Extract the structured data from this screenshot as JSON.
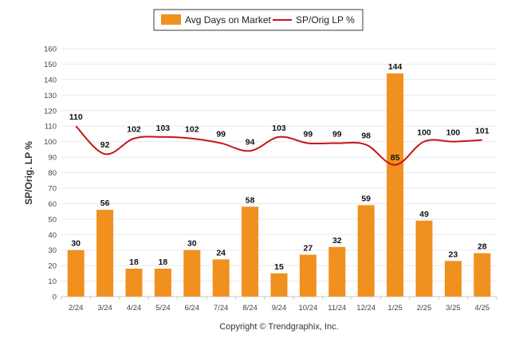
{
  "legend": {
    "bar_label": "Avg Days on Market",
    "line_label": "SP/Orig LP %"
  },
  "copyright": "Copyright © Trendgraphix, Inc.",
  "colors": {
    "bar": "#f0901e",
    "line": "#c81414"
  },
  "chart_data": {
    "type": "bar",
    "categories": [
      "2/24",
      "3/24",
      "4/24",
      "5/24",
      "6/24",
      "7/24",
      "8/24",
      "9/24",
      "10/24",
      "11/24",
      "12/24",
      "1/25",
      "2/25",
      "3/25",
      "4/25"
    ],
    "series": [
      {
        "name": "Avg Days on Market",
        "type": "bar",
        "values": [
          30,
          56,
          18,
          18,
          30,
          24,
          58,
          15,
          27,
          32,
          59,
          144,
          49,
          23,
          28
        ]
      },
      {
        "name": "SP/Orig LP %",
        "type": "line",
        "values": [
          110,
          92,
          102,
          103,
          102,
          99,
          94,
          103,
          99,
          99,
          98,
          85,
          100,
          100,
          101
        ]
      }
    ],
    "ylabel": "SP/Orig. LP %",
    "ylim": [
      0,
      160
    ],
    "yticks": [
      0,
      10,
      20,
      30,
      40,
      50,
      60,
      70,
      80,
      90,
      100,
      110,
      120,
      130,
      140,
      150,
      160
    ],
    "grid": true,
    "legend_position": "top"
  }
}
